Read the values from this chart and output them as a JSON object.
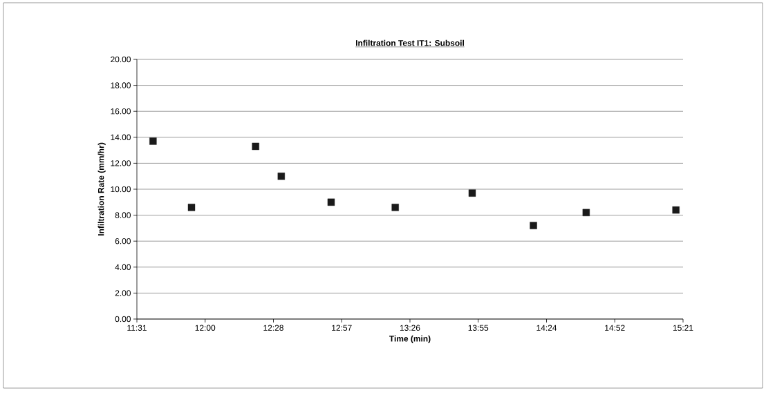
{
  "chart_data": {
    "type": "scatter",
    "title": "Infiltration Test IT1: Subsoil",
    "xlabel": "Time (min)",
    "ylabel": "Infiltration Rate (mm/hr)",
    "x": [
      11.63,
      11.9,
      12.35,
      12.53,
      12.88,
      13.33,
      13.87,
      14.3,
      14.67,
      15.3
    ],
    "series": [
      {
        "color": "#1a1a1a",
        "values": [
          13.7,
          8.6,
          13.3,
          11.0,
          9.0,
          8.6,
          9.7,
          7.2,
          8.2,
          8.4
        ]
      }
    ],
    "marker": "square",
    "xlim": [
      11.5167,
      15.35
    ],
    "xticks": [
      {
        "value": 11.5167,
        "label": "11:31"
      },
      {
        "value": 11.9958,
        "label": "12:00"
      },
      {
        "value": 12.475,
        "label": "12:28"
      },
      {
        "value": 12.9542,
        "label": "12:57"
      },
      {
        "value": 13.4333,
        "label": "13:26"
      },
      {
        "value": 13.9125,
        "label": "13:55"
      },
      {
        "value": 14.3917,
        "label": "14:24"
      },
      {
        "value": 14.8708,
        "label": "14:52"
      },
      {
        "value": 15.35,
        "label": "15:21"
      }
    ],
    "ylim": [
      0,
      20
    ],
    "yticks": [
      {
        "value": 0,
        "label": "0.00"
      },
      {
        "value": 2,
        "label": "2.00"
      },
      {
        "value": 4,
        "label": "4.00"
      },
      {
        "value": 6,
        "label": "6.00"
      },
      {
        "value": 8,
        "label": "8.00"
      },
      {
        "value": 10,
        "label": "10.00"
      },
      {
        "value": 12,
        "label": "12.00"
      },
      {
        "value": 14,
        "label": "14.00"
      },
      {
        "value": 16,
        "label": "16.00"
      },
      {
        "value": 18,
        "label": "18.00"
      },
      {
        "value": 20,
        "label": "20.00"
      }
    ],
    "grid": "y"
  }
}
